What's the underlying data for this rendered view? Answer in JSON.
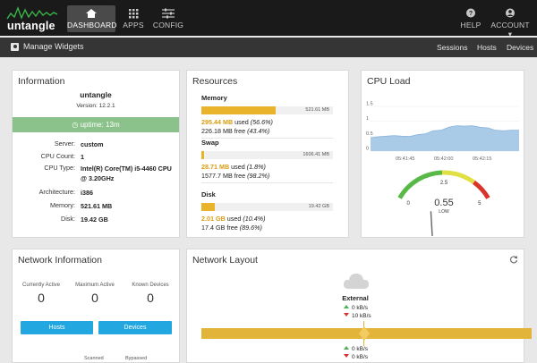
{
  "brand": {
    "name": "untangle"
  },
  "nav": {
    "dashboard": "DASHBOARD",
    "apps": "APPS",
    "config": "CONFIG",
    "help": "HELP",
    "account": "ACCOUNT"
  },
  "subbar": {
    "manage_widgets": "Manage Widgets",
    "sessions": "Sessions",
    "hosts": "Hosts",
    "devices": "Devices"
  },
  "information": {
    "title": "Information",
    "hostname": "untangle",
    "version": "Version: 12.2.1",
    "uptime": "uptime: 13m",
    "rows": [
      {
        "key": "Server:",
        "value": "custom"
      },
      {
        "key": "CPU Count:",
        "value": "1"
      },
      {
        "key": "CPU Type:",
        "value": "Intel(R) Core(TM) i5-4460 CPU @ 3.20GHz"
      },
      {
        "key": "Architecture:",
        "value": "i386"
      },
      {
        "key": "Memory:",
        "value": "521.61 MB"
      },
      {
        "key": "Disk:",
        "value": "19.42 GB"
      }
    ]
  },
  "resources": {
    "title": "Resources",
    "items": [
      {
        "label": "Memory",
        "total": "521.61 MB",
        "used_value": "295.44 MB",
        "used_word": "used",
        "used_pct": "(56.6%)",
        "free_text": "226.18 MB free",
        "free_pct": "(43.4%)",
        "fill": 0.566
      },
      {
        "label": "Swap",
        "total": "1606.41 MB",
        "used_value": "28.71 MB",
        "used_word": "used",
        "used_pct": "(1.8%)",
        "free_text": "1577.7 MB free",
        "free_pct": "(98.2%)",
        "fill": 0.018
      },
      {
        "label": "Disk",
        "total": "19.42 GB",
        "used_value": "2.01 GB",
        "used_word": "used",
        "used_pct": "(10.4%)",
        "free_text": "17.4 GB free",
        "free_pct": "(89.6%)",
        "fill": 0.104
      }
    ]
  },
  "cpu_load": {
    "title": "CPU Load",
    "gauge_value": "0.55",
    "gauge_label": "LOW",
    "gauge_ticks": [
      "0",
      "2.5",
      "5"
    ]
  },
  "chart_data": {
    "type": "area",
    "x": [
      "05:41:45",
      "05:42:00",
      "05:42:15"
    ],
    "y_ticks": [
      "1.5",
      "1",
      "0.5",
      "0"
    ],
    "ylim": [
      0,
      1.5
    ],
    "points": [
      0.45,
      0.48,
      0.5,
      0.52,
      0.5,
      0.49,
      0.55,
      0.58,
      0.68,
      0.7,
      0.8,
      0.85,
      0.84,
      0.85,
      0.8,
      0.78,
      0.7,
      0.68,
      0.7,
      0.7
    ],
    "color": "#aacbe8"
  },
  "network_info": {
    "title": "Network Information",
    "cols": [
      {
        "label": "Currently Active",
        "value": "0"
      },
      {
        "label": "Maximum Active",
        "value": "0"
      },
      {
        "label": "Known Devices",
        "value": "0"
      }
    ],
    "hosts_button": "Hosts",
    "devices_button": "Devices",
    "bottom_labels": [
      "Scanned",
      "Bypassed"
    ]
  },
  "network_layout": {
    "title": "Network Layout",
    "external_label": "External",
    "up_rate": "0 kB/s",
    "down_rate": "10 kB/s",
    "up_rate_2": "0 kB/s",
    "down_rate_2": "0 kB/s"
  },
  "colors": {
    "accent": "#22a7e0",
    "uptime": "#8bc28b",
    "bar": "#e9b42b",
    "topbar": "#1a1a1a"
  }
}
